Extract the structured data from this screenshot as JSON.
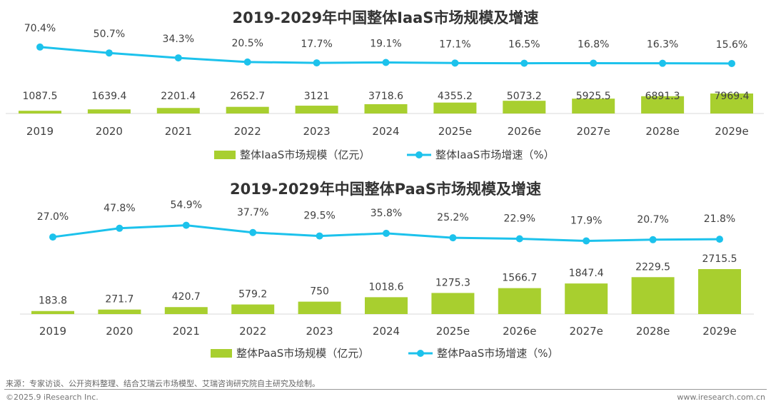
{
  "colors": {
    "bar": "#a8cf2f",
    "line": "#1cc2ec",
    "axis": "#d9d9d9"
  },
  "chart_data": [
    {
      "type": "bar+line",
      "title": "2019-2029年中国整体IaaS市场规模及增速",
      "categories": [
        "2019",
        "2020",
        "2021",
        "2022",
        "2023",
        "2024",
        "2025e",
        "2026e",
        "2027e",
        "2028e",
        "2029e"
      ],
      "series": [
        {
          "name": "整体IaaS市场规模（亿元）",
          "type": "bar",
          "values": [
            "1087.5",
            "1639.4",
            "2201.4",
            "2652.7",
            "3121",
            "3718.6",
            "4355.2",
            "5073.2",
            "5925.5",
            "6891.3",
            "7969.4"
          ]
        },
        {
          "name": "整体IaaS市场增速（%）",
          "type": "line",
          "values": [
            "70.4%",
            "50.7%",
            "34.3%",
            "20.5%",
            "17.7%",
            "19.1%",
            "17.1%",
            "16.5%",
            "16.8%",
            "16.3%",
            "15.6%"
          ]
        }
      ],
      "legend": "bottom"
    },
    {
      "type": "bar+line",
      "title": "2019-2029年中国整体PaaS市场规模及增速",
      "categories": [
        "2019",
        "2020",
        "2021",
        "2022",
        "2023",
        "2024",
        "2025e",
        "2026e",
        "2027e",
        "2028e",
        "2029e"
      ],
      "series": [
        {
          "name": "整体PaaS市场规模（亿元）",
          "type": "bar",
          "values": [
            "183.8",
            "271.7",
            "420.7",
            "579.2",
            "750",
            "1018.6",
            "1275.3",
            "1566.7",
            "1847.4",
            "2229.5",
            "2715.5"
          ]
        },
        {
          "name": "整体PaaS市场增速（%）",
          "type": "line",
          "values": [
            "27.0%",
            "47.8%",
            "54.9%",
            "37.7%",
            "29.5%",
            "35.8%",
            "25.2%",
            "22.9%",
            "17.9%",
            "20.7%",
            "21.8%"
          ]
        }
      ],
      "legend": "bottom"
    }
  ],
  "footer": {
    "source": "来源：专家访谈、公开资料整理、结合艾瑞云市场模型、艾瑞咨询研究院自主研究及绘制。",
    "copyright": "©2025.9 iResearch Inc.",
    "website": "www.iresearch.com.cn"
  }
}
